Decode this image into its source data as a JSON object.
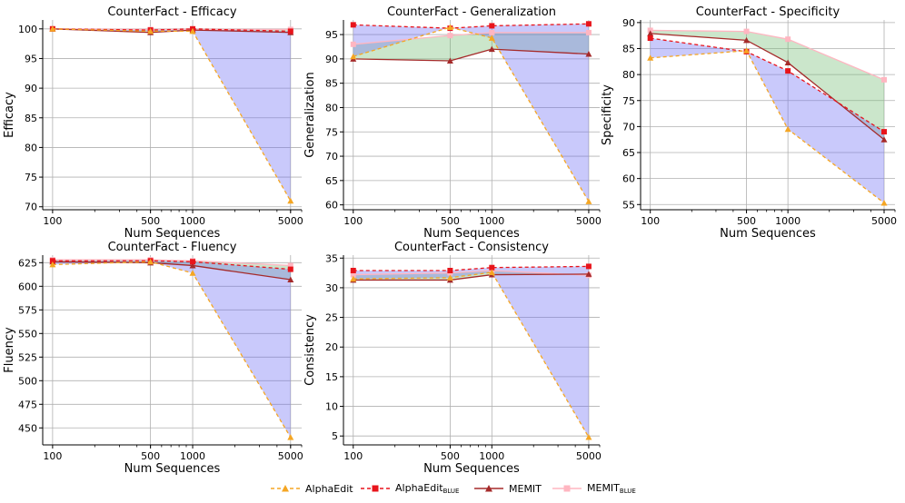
{
  "series_styles": [
    {
      "key": "alphaedit",
      "color": "#f5a623",
      "dash": "4,3",
      "marker": "triangle"
    },
    {
      "key": "alphaedit_blue",
      "color": "#e8141b",
      "dash": "4,3",
      "marker": "square"
    },
    {
      "key": "memit",
      "color": "#a52a2a",
      "dash": "",
      "marker": "triangle"
    },
    {
      "key": "memit_blue",
      "color": "#ffb6c1",
      "dash": "",
      "marker": "square"
    }
  ],
  "fill_colors": {
    "blue": "#7070f5",
    "green": "#6ab76a",
    "pale": "#f7e7b0"
  },
  "legend": [
    {
      "label": "AlphaEdit",
      "sub": ""
    },
    {
      "label": "AlphaEdit",
      "sub": "BLUE"
    },
    {
      "label": "MEMIT",
      "sub": ""
    },
    {
      "label": "MEMIT",
      "sub": "BLUE"
    }
  ],
  "chart_data": [
    {
      "type": "line",
      "title": "CounterFact - Efficacy",
      "xlabel": "Num Sequences",
      "ylabel": "Efficacy",
      "x": [
        100,
        500,
        1000,
        5000
      ],
      "xscale": "log",
      "xticks": [
        100,
        500,
        1000,
        5000
      ],
      "xlim": [
        85,
        6000
      ],
      "ylim": [
        69.5,
        101.5
      ],
      "yticks": [
        70,
        75,
        80,
        85,
        90,
        95,
        100
      ],
      "grid": true,
      "series": [
        {
          "name": "AlphaEdit",
          "values": [
            100,
            99.6,
            99.6,
            71
          ]
        },
        {
          "name": "AlphaEdit_BLUE",
          "values": [
            100,
            99.8,
            100,
            99.6
          ]
        },
        {
          "name": "MEMIT",
          "values": [
            100,
            99.4,
            99.8,
            99.4
          ]
        },
        {
          "name": "MEMIT_BLUE",
          "values": [
            100,
            99.9,
            99.9,
            99.9
          ]
        }
      ]
    },
    {
      "type": "line",
      "title": "CounterFact - Generalization",
      "xlabel": "Num Sequences",
      "ylabel": "Generalization",
      "x": [
        100,
        500,
        1000,
        5000
      ],
      "xscale": "log",
      "xticks": [
        100,
        500,
        1000,
        5000
      ],
      "xlim": [
        85,
        6000
      ],
      "ylim": [
        59,
        98
      ],
      "yticks": [
        60,
        65,
        70,
        75,
        80,
        85,
        90,
        95
      ],
      "grid": true,
      "series": [
        {
          "name": "AlphaEdit",
          "values": [
            90.5,
            96.5,
            94.3,
            60.7
          ]
        },
        {
          "name": "AlphaEdit_BLUE",
          "values": [
            97,
            96.3,
            96.8,
            97.2
          ]
        },
        {
          "name": "MEMIT",
          "values": [
            90,
            89.6,
            92,
            91
          ]
        },
        {
          "name": "MEMIT_BLUE",
          "values": [
            93,
            94.8,
            95.4,
            95.4
          ]
        }
      ]
    },
    {
      "type": "line",
      "title": "CounterFact - Specificity",
      "xlabel": "Num Sequences",
      "ylabel": "Specificity",
      "x": [
        100,
        500,
        1000,
        5000
      ],
      "xscale": "log",
      "xticks": [
        100,
        500,
        1000,
        5000
      ],
      "xlim": [
        85,
        6000
      ],
      "ylim": [
        54,
        90.5
      ],
      "yticks": [
        55,
        60,
        65,
        70,
        75,
        80,
        85,
        90
      ],
      "grid": true,
      "series": [
        {
          "name": "AlphaEdit",
          "values": [
            83.2,
            84.6,
            69.5,
            55.3
          ]
        },
        {
          "name": "AlphaEdit_BLUE",
          "values": [
            87,
            84.4,
            80.7,
            69
          ]
        },
        {
          "name": "MEMIT",
          "values": [
            87.9,
            86.6,
            82.3,
            67.5
          ]
        },
        {
          "name": "MEMIT_BLUE",
          "values": [
            88.5,
            88.3,
            86.8,
            79
          ]
        }
      ]
    },
    {
      "type": "line",
      "title": "CounterFact - Fluency",
      "xlabel": "Num Sequences",
      "ylabel": "Fluency",
      "x": [
        100,
        500,
        1000,
        5000
      ],
      "xscale": "log",
      "xticks": [
        100,
        500,
        1000,
        5000
      ],
      "xlim": [
        85,
        6000
      ],
      "ylim": [
        432,
        633
      ],
      "yticks": [
        450,
        475,
        500,
        525,
        550,
        575,
        600,
        625
      ],
      "grid": true,
      "series": [
        {
          "name": "AlphaEdit",
          "values": [
            623,
            626,
            614,
            440
          ]
        },
        {
          "name": "AlphaEdit_BLUE",
          "values": [
            627,
            627,
            626,
            618
          ]
        },
        {
          "name": "MEMIT",
          "values": [
            626,
            625,
            622,
            607
          ]
        },
        {
          "name": "MEMIT_BLUE",
          "values": [
            628,
            628,
            627,
            622
          ]
        }
      ]
    },
    {
      "type": "line",
      "title": "CounterFact - Consistency",
      "xlabel": "Num Sequences",
      "ylabel": "Consistency",
      "x": [
        100,
        500,
        1000,
        5000
      ],
      "xscale": "log",
      "xticks": [
        100,
        500,
        1000,
        5000
      ],
      "xlim": [
        85,
        6000
      ],
      "ylim": [
        3.5,
        35.5
      ],
      "yticks": [
        5,
        10,
        15,
        20,
        25,
        30,
        35
      ],
      "grid": true,
      "series": [
        {
          "name": "AlphaEdit",
          "values": [
            31.5,
            31.7,
            32.6,
            4.8
          ]
        },
        {
          "name": "AlphaEdit_BLUE",
          "values": [
            32.9,
            32.9,
            33.4,
            33.6
          ]
        },
        {
          "name": "MEMIT",
          "values": [
            31.3,
            31.3,
            32.2,
            32.3
          ]
        },
        {
          "name": "MEMIT_BLUE",
          "values": [
            32.2,
            32.5,
            32.9,
            32.1
          ]
        }
      ]
    }
  ]
}
